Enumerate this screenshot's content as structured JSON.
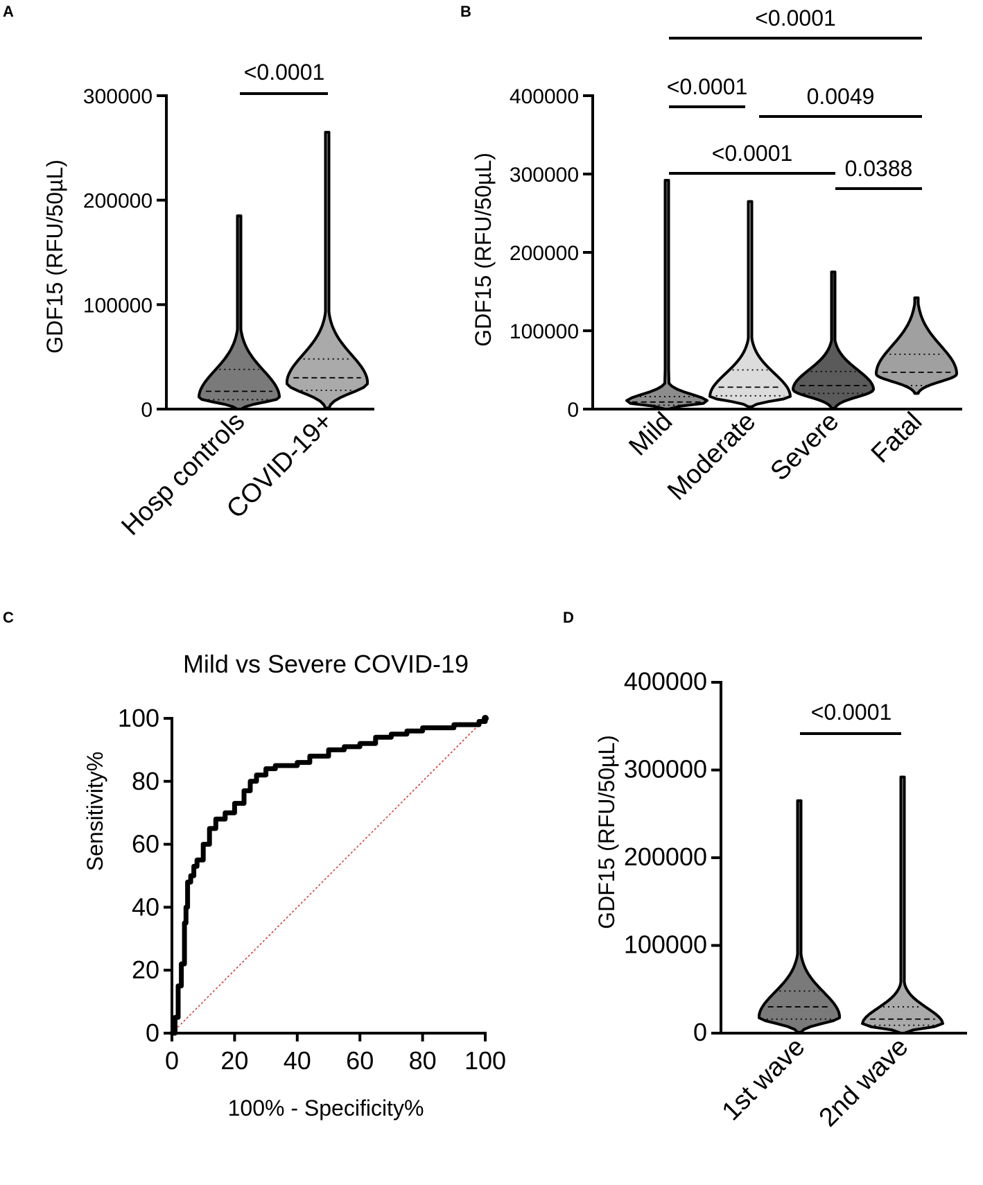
{
  "figure": {
    "panels": [
      "A",
      "B",
      "C",
      "D"
    ]
  },
  "chart_data": [
    {
      "panel": "A",
      "type": "violin",
      "ylabel": "GDF15 (RFU/50µL)",
      "ylim": [
        0,
        300000
      ],
      "yticks": [
        0,
        100000,
        200000,
        300000
      ],
      "ytick_labels": [
        "0",
        "100000",
        "200000",
        "300000"
      ],
      "categories": [
        "Hosp controls",
        "COVID-19+"
      ],
      "colors": [
        "#7a7a7a",
        "#aaaaaa"
      ],
      "violins": [
        {
          "name": "Hosp controls",
          "min": 0,
          "max": 185000,
          "median": 17000,
          "q1": 9000,
          "q3": 38000,
          "peak": 11000
        },
        {
          "name": "COVID-19+",
          "min": 1000,
          "max": 265000,
          "median": 30000,
          "q1": 18000,
          "q3": 48000,
          "peak": 25000
        }
      ],
      "significance": [
        {
          "label": "<0.0001",
          "from": 0,
          "to": 1,
          "y": 300000
        }
      ]
    },
    {
      "panel": "B",
      "type": "violin",
      "ylabel": "GDF15 (RFU/50µL)",
      "ylim": [
        0,
        400000
      ],
      "yticks": [
        0,
        100000,
        200000,
        300000,
        400000
      ],
      "ytick_labels": [
        "0",
        "100000",
        "200000",
        "300000",
        "400000"
      ],
      "categories": [
        "Mild",
        "Moderate",
        "Severe",
        "Fatal"
      ],
      "colors": [
        "#8c8c8c",
        "#dcdcdc",
        "#5a5a5a",
        "#a0a0a0"
      ],
      "violins": [
        {
          "name": "Mild",
          "min": 0,
          "max": 292000,
          "median": 9000,
          "q1": 5000,
          "q3": 16000,
          "peak": 9000
        },
        {
          "name": "Moderate",
          "min": 3000,
          "max": 265000,
          "median": 28000,
          "q1": 17000,
          "q3": 50000,
          "peak": 16000
        },
        {
          "name": "Severe",
          "min": 1000,
          "max": 175000,
          "median": 30000,
          "q1": 20000,
          "q3": 48000,
          "peak": 25000
        },
        {
          "name": "Fatal",
          "min": 20000,
          "max": 142000,
          "median": 47000,
          "q1": 30000,
          "q3": 70000,
          "peak": 45000
        }
      ],
      "significance": [
        {
          "label": "<0.0001",
          "from": 0,
          "to": 3,
          "y": 472000
        },
        {
          "label": "<0.0001",
          "from": 0,
          "to": 1,
          "y": 385000
        },
        {
          "label": "0.0049",
          "from": 1,
          "to": 3,
          "y": 372000
        },
        {
          "label": "<0.0001",
          "from": 0,
          "to": 2,
          "y": 300000
        },
        {
          "label": "0.0388",
          "from": 2,
          "to": 3,
          "y": 280000
        }
      ]
    },
    {
      "panel": "C",
      "type": "line",
      "title": "Mild vs Severe COVID-19",
      "xlabel": "100% - Specificity%",
      "ylabel": "Sensitivity%",
      "xlim": [
        0,
        100
      ],
      "ylim": [
        0,
        100
      ],
      "xticks": [
        "0",
        "20",
        "40",
        "60",
        "80",
        "100"
      ],
      "yticks": [
        "0",
        "20",
        "40",
        "60",
        "80",
        "100"
      ],
      "series": [
        {
          "name": "ROC",
          "color": "#000000",
          "x": [
            0,
            1,
            2,
            3,
            4,
            4.5,
            5,
            6,
            7,
            8,
            10,
            12,
            14,
            17,
            20,
            23,
            25,
            27,
            30,
            33,
            37,
            40,
            44,
            50,
            55,
            60,
            65,
            70,
            75,
            80,
            85,
            90,
            95,
            98,
            100
          ],
          "y": [
            0,
            5,
            15,
            22,
            35,
            40,
            48,
            50,
            53,
            55,
            60,
            65,
            68,
            70,
            73,
            77,
            80,
            82,
            84,
            85,
            85,
            86,
            88,
            90,
            91,
            92,
            94,
            95,
            96,
            97,
            97,
            98,
            98,
            99,
            100
          ]
        },
        {
          "name": "Reference",
          "color": "#cc3333",
          "x": [
            0,
            100
          ],
          "y": [
            0,
            100
          ]
        }
      ]
    },
    {
      "panel": "D",
      "type": "violin",
      "ylabel": "GDF15 (RFU/50µL)",
      "ylim": [
        0,
        400000
      ],
      "yticks": [
        0,
        100000,
        200000,
        300000,
        400000
      ],
      "ytick_labels": [
        "0",
        "100000",
        "200000",
        "300000",
        "400000"
      ],
      "categories": [
        "1st wave",
        "2nd wave"
      ],
      "colors": [
        "#7a7a7a",
        "#aaaaaa"
      ],
      "violins": [
        {
          "name": "1st wave",
          "min": 1000,
          "max": 265000,
          "median": 30000,
          "q1": 16000,
          "q3": 48000,
          "peak": 18000
        },
        {
          "name": "2nd wave",
          "min": 0,
          "max": 292000,
          "median": 16000,
          "q1": 9000,
          "q3": 30000,
          "peak": 10000
        }
      ],
      "significance": [
        {
          "label": "<0.0001",
          "from": 0,
          "to": 1,
          "y": 340000
        }
      ]
    }
  ]
}
